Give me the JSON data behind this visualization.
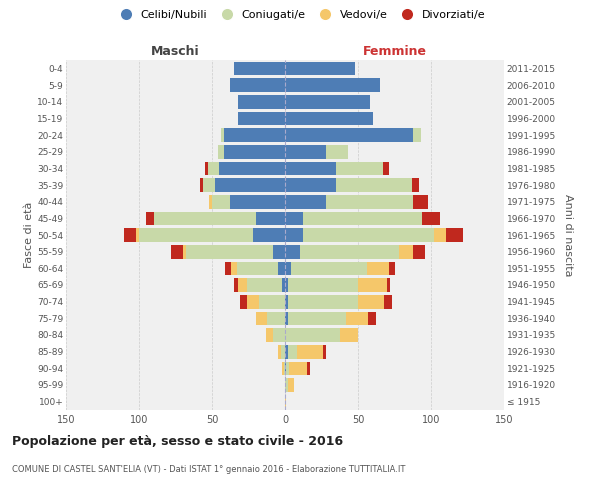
{
  "age_groups": [
    "100+",
    "95-99",
    "90-94",
    "85-89",
    "80-84",
    "75-79",
    "70-74",
    "65-69",
    "60-64",
    "55-59",
    "50-54",
    "45-49",
    "40-44",
    "35-39",
    "30-34",
    "25-29",
    "20-24",
    "15-19",
    "10-14",
    "5-9",
    "0-4"
  ],
  "birth_years": [
    "≤ 1915",
    "1916-1920",
    "1921-1925",
    "1926-1930",
    "1931-1935",
    "1936-1940",
    "1941-1945",
    "1946-1950",
    "1951-1955",
    "1956-1960",
    "1961-1965",
    "1966-1970",
    "1971-1975",
    "1976-1980",
    "1981-1985",
    "1986-1990",
    "1991-1995",
    "1996-2000",
    "2001-2005",
    "2006-2010",
    "2011-2015"
  ],
  "colors": {
    "celibi": "#4e7db5",
    "coniugati": "#c8d9a8",
    "vedovi": "#f5c76a",
    "divorziati": "#c0281e"
  },
  "male": {
    "celibi": [
      0,
      0,
      0,
      0,
      0,
      0,
      0,
      2,
      5,
      8,
      22,
      20,
      38,
      48,
      45,
      42,
      42,
      32,
      32,
      38,
      35
    ],
    "coniugati": [
      0,
      0,
      1,
      3,
      8,
      12,
      18,
      24,
      28,
      60,
      78,
      70,
      12,
      8,
      8,
      4,
      2,
      0,
      0,
      0,
      0
    ],
    "vedovi": [
      0,
      0,
      1,
      2,
      5,
      8,
      8,
      6,
      4,
      2,
      2,
      0,
      2,
      0,
      0,
      0,
      0,
      0,
      0,
      0,
      0
    ],
    "divorziati": [
      0,
      0,
      0,
      0,
      0,
      0,
      5,
      3,
      4,
      8,
      8,
      5,
      0,
      2,
      2,
      0,
      0,
      0,
      0,
      0,
      0
    ]
  },
  "female": {
    "celibi": [
      0,
      0,
      1,
      2,
      0,
      2,
      2,
      2,
      4,
      10,
      12,
      12,
      28,
      35,
      35,
      28,
      88,
      60,
      58,
      65,
      48
    ],
    "coniugati": [
      0,
      2,
      2,
      6,
      38,
      40,
      48,
      48,
      52,
      68,
      90,
      82,
      60,
      52,
      32,
      15,
      5,
      0,
      0,
      0,
      0
    ],
    "vedovi": [
      1,
      4,
      12,
      18,
      12,
      15,
      18,
      20,
      15,
      10,
      8,
      0,
      0,
      0,
      0,
      0,
      0,
      0,
      0,
      0,
      0
    ],
    "divorziati": [
      0,
      0,
      2,
      2,
      0,
      5,
      5,
      2,
      4,
      8,
      12,
      12,
      10,
      5,
      4,
      0,
      0,
      0,
      0,
      0,
      0
    ]
  },
  "xlim": 150,
  "title": "Popolazione per età, sesso e stato civile - 2016",
  "subtitle": "COMUNE DI CASTEL SANT'ELIA (VT) - Dati ISTAT 1° gennaio 2016 - Elaborazione TUTTITALIA.IT",
  "xlabel_left": "Maschi",
  "xlabel_right": "Femmine",
  "ylabel_left": "Fasce di età",
  "ylabel_right": "Anni di nascita",
  "legend_labels": [
    "Celibi/Nubili",
    "Coniugati/e",
    "Vedovi/e",
    "Divorziati/e"
  ],
  "background_color": "#ffffff",
  "grid_color": "#cccccc"
}
